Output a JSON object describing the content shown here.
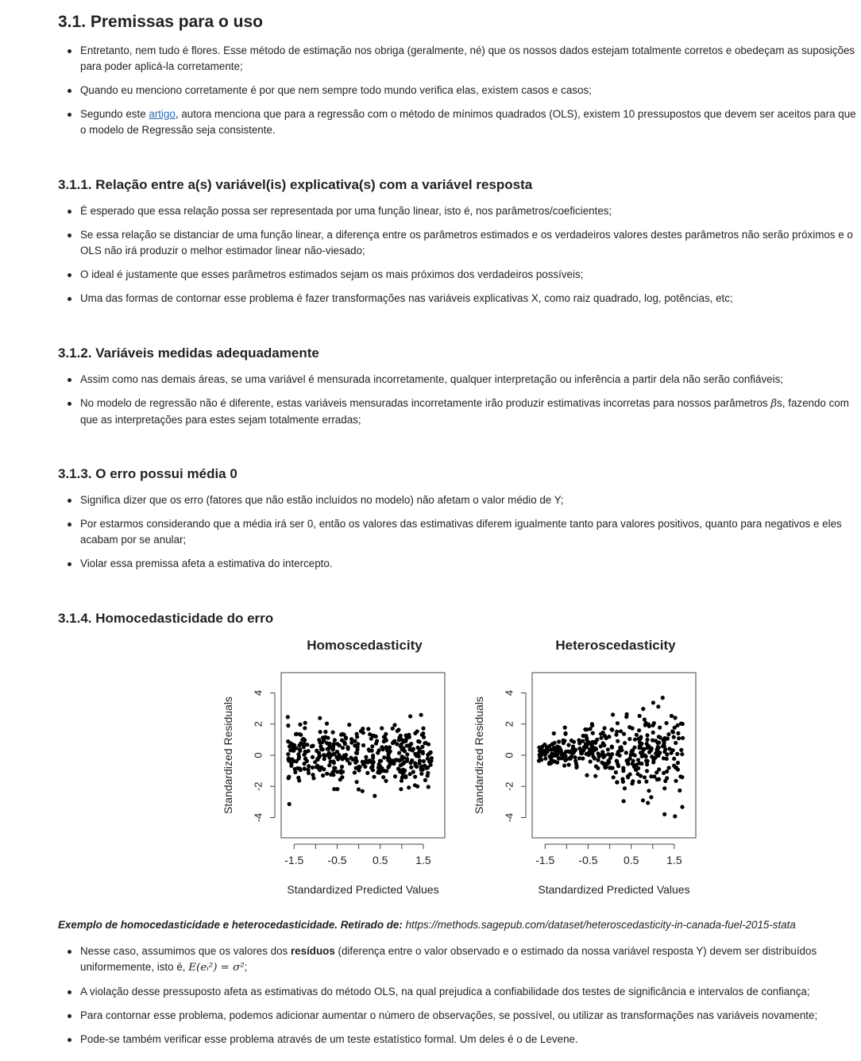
{
  "sec31": {
    "title": "3.1. Premissas para o uso",
    "b1": "Entretanto, nem tudo é flores. Esse método de estimação nos obriga (geralmente, né) que os nossos dados estejam totalmente corretos e obedeçam as suposições para poder aplicá-la corretamente;",
    "b2": "Quando eu menciono corretamente é por que nem sempre todo mundo verifica elas, existem casos e casos;",
    "b3_pre": "Segundo este ",
    "b3_link": "artigo",
    "b3_post": ", autora menciona que para a regressão com o método de mínimos quadrados (OLS), existem 10 pressupostos que devem ser aceitos para que o modelo de Regressão seja consistente."
  },
  "sec311": {
    "title": "3.1.1. Relação entre a(s) variável(is) explicativa(s) com a variável resposta",
    "b1": "É esperado que essa relação possa ser representada por uma função linear, isto é, nos parâmetros/coeficientes;",
    "b2": "Se essa relação se distanciar de uma função linear, a diferença entre os parâmetros estimados e os verdadeiros valores destes parâmetros não serão próximos e o OLS não irá produzir o melhor estimador linear não-viesado;",
    "b3": "O ideal é justamente que esses parâmetros estimados sejam os mais próximos dos verdadeiros possíveis;",
    "b4": "Uma das formas de contornar esse problema é fazer transformações nas variáveis explicativas X, como raiz quadrado, log, potências, etc;"
  },
  "sec312": {
    "title": "3.1.2. Variáveis medidas adequadamente",
    "b1": "Assim como nas demais áreas, se uma variável é mensurada incorretamente, qualquer interpretação ou inferência a partir dela não serão confiáveis;",
    "b2_pre": "No modelo de regressão não é diferente, estas variáveis mensuradas incorretamente irão produzir estimativas incorretas para nossos parâmetros ",
    "b2_math": "β",
    "b2_post": "s, fazendo com que as interpretações para estes sejam totalmente erradas;"
  },
  "sec313": {
    "title": "3.1.3. O erro possui média 0",
    "b1": "Significa dizer que os erro (fatores que não estão incluídos no modelo) não afetam o valor médio de Y;",
    "b2": "Por estarmos considerando que a média irá ser 0, então os valores das estimativas diferem igualmente tanto para valores positivos, quanto para negativos e eles acabam por se anular;",
    "b3": "Violar essa premissa afeta a estimativa do intercepto."
  },
  "sec314": {
    "title": "3.1.4. Homocedasticidade do erro",
    "caption_bold": "Exemplo de homocedasticidade e heterocedasticidade. Retirado de:",
    "caption_url": " https://methods.sagepub.com/dataset/heteroscedasticity-in-canada-fuel-2015-stata",
    "b1_pre": "Nesse caso, assumimos que os valores dos ",
    "b1_bold": "resíduos",
    "b1_mid": " (diferença entre o valor observado e o estimado da nossa variável resposta Y) devem ser distribuídos uniformemente, isto é, ",
    "b1_math": "E(eᵢ²) = σ²",
    "b1_post": ";",
    "b2": "A violação desse pressuposto afeta as estimativas do método OLS, na qual prejudica a confiabilidade dos testes de significância e intervalos de confiança;",
    "b3": "Para contornar esse problema, podemos adicionar aumentar o número de observações, se possível, ou utilizar as transformações nas variáveis novamente;",
    "b4": "Pode-se também verificar esse problema através de um teste estatístico formal. Um deles é o de Levene."
  },
  "chart_data": [
    {
      "type": "scatter",
      "title": "Homoscedasticity",
      "xlabel": "Standardized Predicted Values",
      "ylabel": "Standardized Residuals",
      "xlim": [
        -1.8,
        2.0
      ],
      "ylim": [
        -5.3,
        5.3
      ],
      "xticks": [
        -1.5,
        -1.0,
        -0.5,
        0.0,
        0.5,
        1.0,
        1.5
      ],
      "xticklabels": [
        "-1.5",
        "-0.5",
        "0.5",
        "1.5"
      ],
      "yticks": [
        -4,
        -2,
        0,
        2,
        4
      ],
      "yticklabels": [
        "-4",
        "-2",
        "0",
        "2",
        "4"
      ],
      "pattern": "constant spread (sd ≈ 0.9) across x",
      "points": 400
    },
    {
      "type": "scatter",
      "title": "Heteroscedasticity",
      "xlabel": "Standardized Predicted Values",
      "ylabel": "Standardized Residuals",
      "xlim": [
        -1.8,
        2.0
      ],
      "ylim": [
        -5.3,
        5.3
      ],
      "xticks": [
        -1.5,
        -1.0,
        -0.5,
        0.0,
        0.5,
        1.0,
        1.5
      ],
      "xticklabels": [
        "-1.5",
        "-0.5",
        "0.5",
        "1.5"
      ],
      "yticks": [
        -4,
        -2,
        0,
        2,
        4
      ],
      "yticklabels": [
        "-4",
        "-2",
        "0",
        "2",
        "4"
      ],
      "pattern": "spread increases with x (sd ≈ 0.3 at left to ≈ 1.8 at right)",
      "points": 400
    }
  ]
}
